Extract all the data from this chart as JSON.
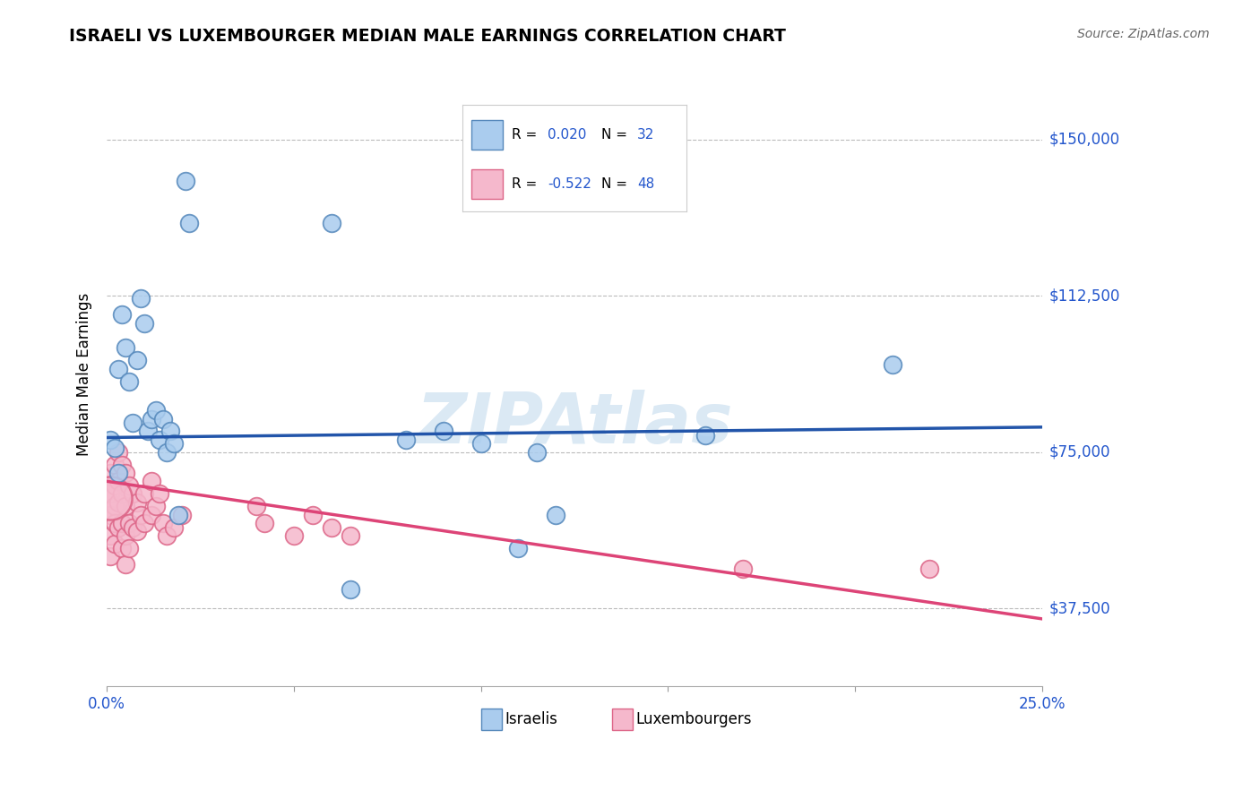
{
  "title": "ISRAELI VS LUXEMBOURGER MEDIAN MALE EARNINGS CORRELATION CHART",
  "source": "Source: ZipAtlas.com",
  "ylabel": "Median Male Earnings",
  "xlim": [
    0.0,
    0.25
  ],
  "ylim": [
    18750,
    168750
  ],
  "yticks": [
    37500,
    75000,
    112500,
    150000
  ],
  "ytick_labels": [
    "$37,500",
    "$75,000",
    "$112,500",
    "$150,000"
  ],
  "xticks": [
    0.0,
    0.05,
    0.1,
    0.15,
    0.2,
    0.25
  ],
  "xtick_labels": [
    "0.0%",
    "",
    "",
    "",
    "",
    "25.0%"
  ],
  "background_color": "#ffffff",
  "grid_color": "#bbbbbb",
  "israeli_color": "#aaccee",
  "luxembourger_color": "#f5b8cc",
  "israeli_edge_color": "#5588bb",
  "luxembourger_edge_color": "#dd6688",
  "trend_israeli_color": "#2255aa",
  "trend_luxembourger_color": "#dd4477",
  "legend_R_color": "#2255cc",
  "legend_N_color": "#2255cc",
  "axis_label_color": "#2255cc",
  "watermark_color": "#cce0f0",
  "israeli_points": [
    [
      0.001,
      78000
    ],
    [
      0.002,
      76000
    ],
    [
      0.003,
      70000
    ],
    [
      0.003,
      95000
    ],
    [
      0.004,
      108000
    ],
    [
      0.005,
      100000
    ],
    [
      0.006,
      92000
    ],
    [
      0.007,
      82000
    ],
    [
      0.008,
      97000
    ],
    [
      0.009,
      112000
    ],
    [
      0.01,
      106000
    ],
    [
      0.011,
      80000
    ],
    [
      0.012,
      83000
    ],
    [
      0.013,
      85000
    ],
    [
      0.014,
      78000
    ],
    [
      0.015,
      83000
    ],
    [
      0.016,
      75000
    ],
    [
      0.017,
      80000
    ],
    [
      0.018,
      77000
    ],
    [
      0.019,
      60000
    ],
    [
      0.021,
      140000
    ],
    [
      0.022,
      130000
    ],
    [
      0.06,
      130000
    ],
    [
      0.065,
      42000
    ],
    [
      0.08,
      78000
    ],
    [
      0.09,
      80000
    ],
    [
      0.1,
      77000
    ],
    [
      0.11,
      52000
    ],
    [
      0.115,
      75000
    ],
    [
      0.12,
      60000
    ],
    [
      0.16,
      79000
    ],
    [
      0.21,
      96000
    ]
  ],
  "luxembourger_points": [
    [
      0.001,
      70000
    ],
    [
      0.001,
      65000
    ],
    [
      0.001,
      60000
    ],
    [
      0.001,
      55000
    ],
    [
      0.001,
      50000
    ],
    [
      0.002,
      72000
    ],
    [
      0.002,
      67000
    ],
    [
      0.002,
      62000
    ],
    [
      0.002,
      58000
    ],
    [
      0.002,
      53000
    ],
    [
      0.003,
      75000
    ],
    [
      0.003,
      68000
    ],
    [
      0.003,
      63000
    ],
    [
      0.003,
      57000
    ],
    [
      0.004,
      72000
    ],
    [
      0.004,
      65000
    ],
    [
      0.004,
      58000
    ],
    [
      0.004,
      52000
    ],
    [
      0.005,
      70000
    ],
    [
      0.005,
      62000
    ],
    [
      0.005,
      55000
    ],
    [
      0.005,
      48000
    ],
    [
      0.006,
      67000
    ],
    [
      0.006,
      58000
    ],
    [
      0.006,
      52000
    ],
    [
      0.007,
      65000
    ],
    [
      0.007,
      57000
    ],
    [
      0.008,
      63000
    ],
    [
      0.008,
      56000
    ],
    [
      0.009,
      60000
    ],
    [
      0.01,
      65000
    ],
    [
      0.01,
      58000
    ],
    [
      0.012,
      68000
    ],
    [
      0.012,
      60000
    ],
    [
      0.013,
      62000
    ],
    [
      0.014,
      65000
    ],
    [
      0.015,
      58000
    ],
    [
      0.016,
      55000
    ],
    [
      0.018,
      57000
    ],
    [
      0.02,
      60000
    ],
    [
      0.04,
      62000
    ],
    [
      0.042,
      58000
    ],
    [
      0.05,
      55000
    ],
    [
      0.055,
      60000
    ],
    [
      0.06,
      57000
    ],
    [
      0.065,
      55000
    ],
    [
      0.17,
      47000
    ],
    [
      0.22,
      47000
    ]
  ],
  "luxembourger_big_cluster": [
    0.001,
    64000
  ],
  "trend_israeli_x0": 0.0,
  "trend_israeli_y0": 78500,
  "trend_israeli_x1": 0.25,
  "trend_israeli_y1": 81000,
  "trend_lux_x0": 0.0,
  "trend_lux_y0": 68000,
  "trend_lux_x1": 0.25,
  "trend_lux_y1": 35000
}
